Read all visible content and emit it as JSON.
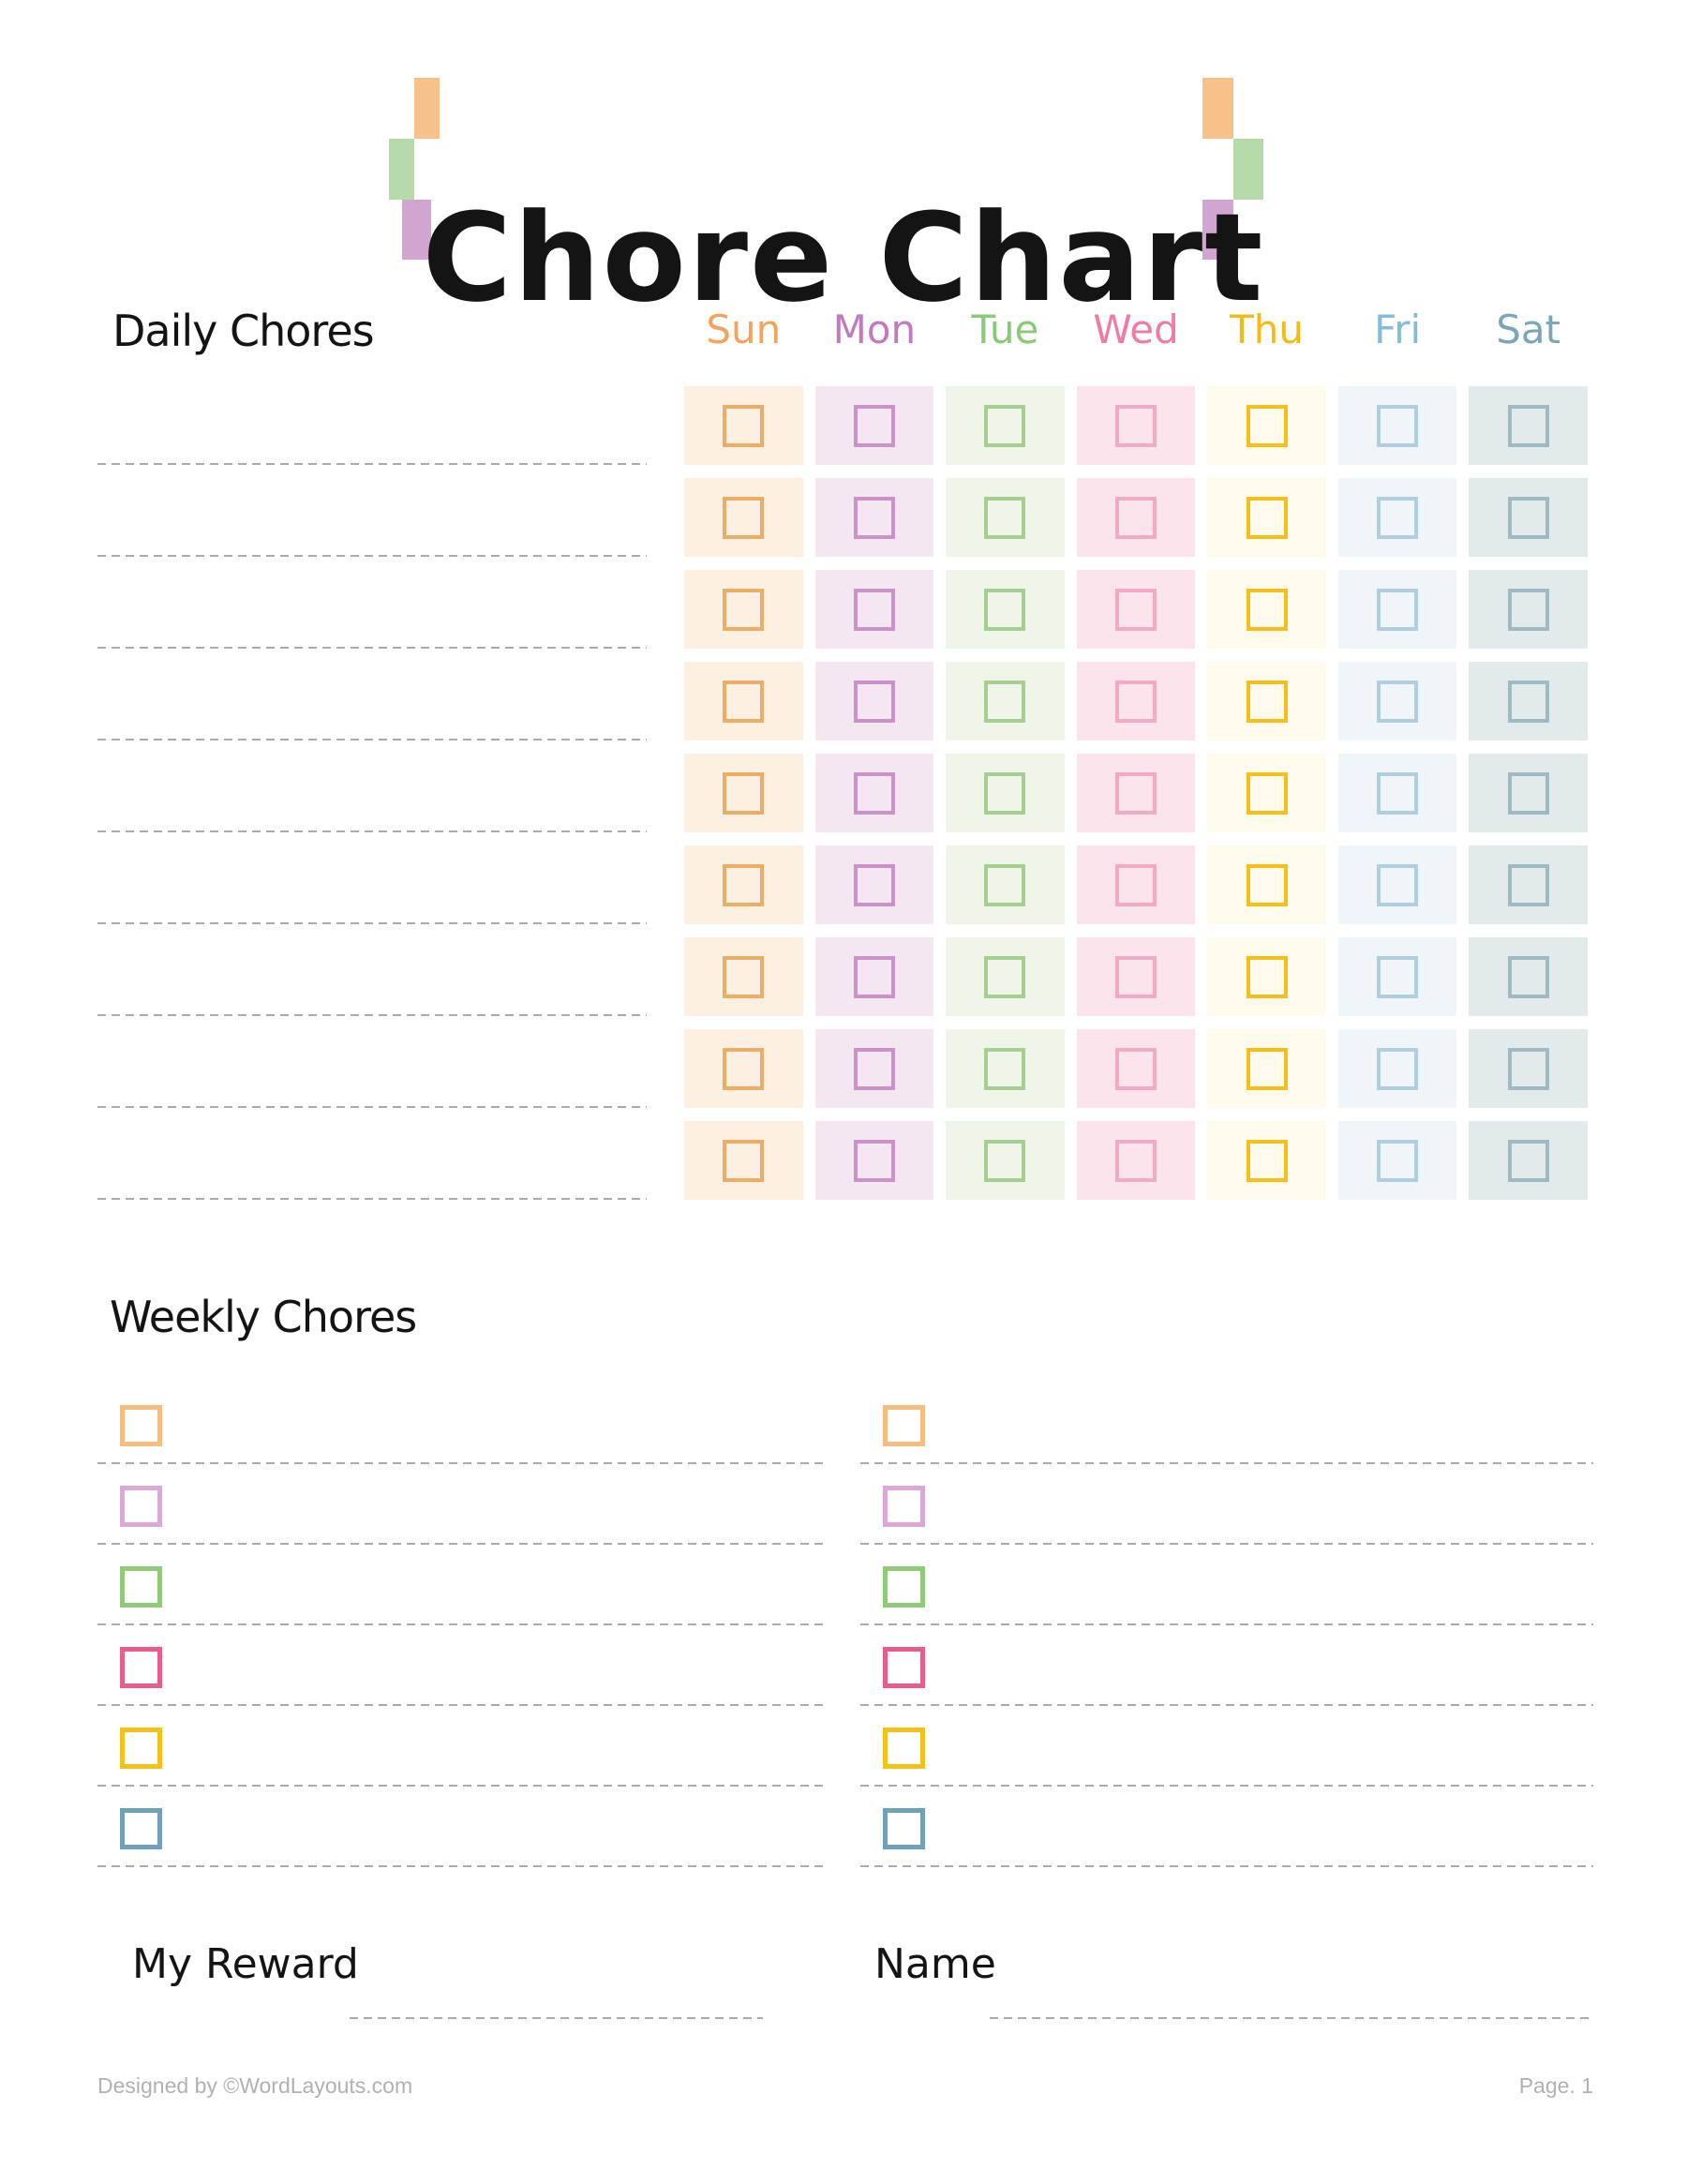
{
  "header": {
    "title": "Chore Chart",
    "decor_colors": {
      "orange": "#F6C28A",
      "green": "#B7DAAA",
      "purple": "#D2A5D0"
    }
  },
  "daily": {
    "heading": "Daily Chores",
    "rows": 9,
    "write_in_lines": 9,
    "days": [
      {
        "label": "Sun",
        "text_color": "#F2A45C",
        "cell_bg": "#FCF0E3",
        "box_border": "#ECAE66"
      },
      {
        "label": "Mon",
        "text_color": "#C27ABE",
        "cell_bg": "#F5E7F2",
        "box_border": "#CA92C6"
      },
      {
        "label": "Tue",
        "text_color": "#8CC878",
        "cell_bg": "#EFF5E9",
        "box_border": "#A7CE92"
      },
      {
        "label": "Wed",
        "text_color": "#EE7BA8",
        "cell_bg": "#FBE4EC",
        "box_border": "#F1AAC5"
      },
      {
        "label": "Thu",
        "text_color": "#F4BB16",
        "cell_bg": "#FEFBEC",
        "box_border": "#F3C01B"
      },
      {
        "label": "Fri",
        "text_color": "#85BDD9",
        "cell_bg": "#EFF5F8",
        "box_border": "#B0CEDD"
      },
      {
        "label": "Sat",
        "text_color": "#7AA7B7",
        "cell_bg": "#E3EAEC",
        "box_border": "#A0BAC4"
      }
    ]
  },
  "weekly": {
    "heading": "Weekly Chores",
    "columns": 2,
    "items_per_column": 6,
    "box_colors": [
      "#F4BE82",
      "#DAAAD6",
      "#90C979",
      "#E95D8D",
      "#F3C11A",
      "#70A1B6"
    ]
  },
  "fields": {
    "reward_label": "My Reward",
    "name_label": "Name"
  },
  "footer": {
    "credit": "Designed by ©WordLayouts.com",
    "page": "Page. 1"
  }
}
